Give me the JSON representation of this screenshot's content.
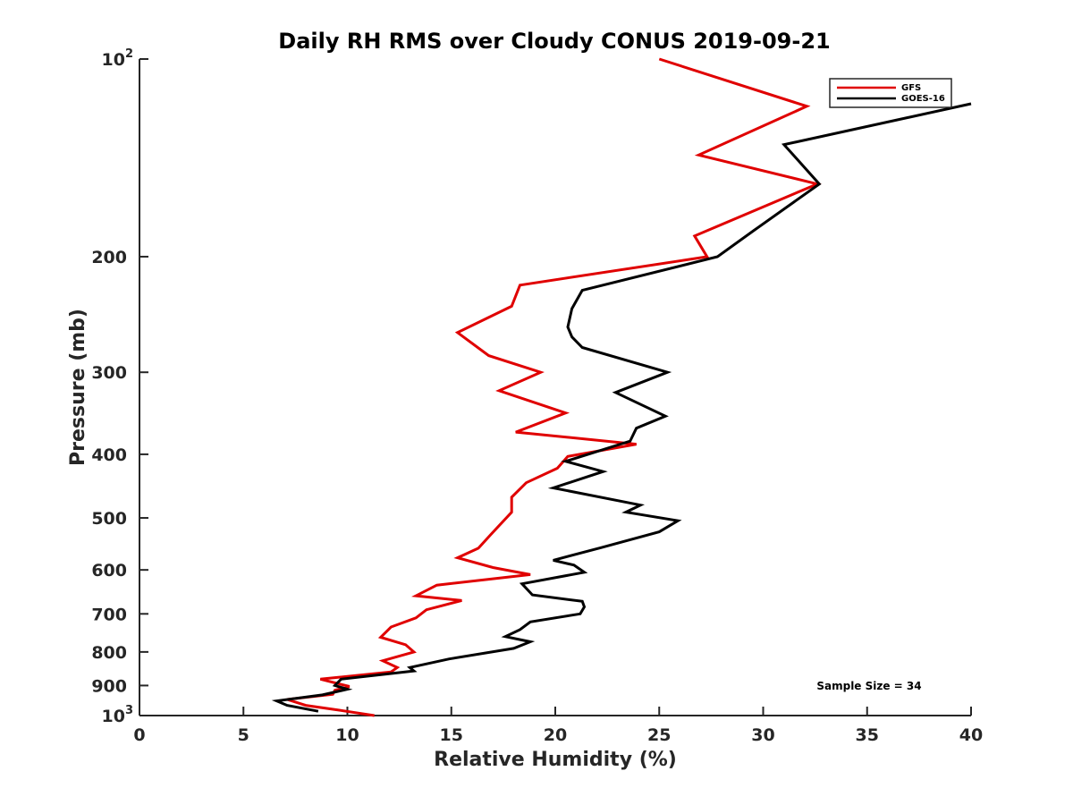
{
  "chart_data": {
    "type": "line",
    "title": "Daily RH RMS over Cloudy CONUS 2019-09-21",
    "xlabel": "Relative Humidity (%)",
    "ylabel": "Pressure (mb)",
    "xlim": [
      0,
      40
    ],
    "ylim": [
      100,
      1000
    ],
    "y_scale": "log",
    "y_reversed": true,
    "grid": false,
    "legend_position": "top-right",
    "x_ticks": [
      0,
      5,
      10,
      15,
      20,
      25,
      30,
      35,
      40
    ],
    "y_ticks": [
      {
        "value": 100,
        "base": "10",
        "exp": "2"
      },
      {
        "value": 200,
        "label": "200"
      },
      {
        "value": 300,
        "label": "300"
      },
      {
        "value": 400,
        "label": "400"
      },
      {
        "value": 500,
        "label": "500"
      },
      {
        "value": 600,
        "label": "600"
      },
      {
        "value": 700,
        "label": "700"
      },
      {
        "value": 800,
        "label": "800"
      },
      {
        "value": 900,
        "label": "900"
      },
      {
        "value": 1000,
        "base": "10",
        "exp": "3"
      }
    ],
    "series": [
      {
        "name": "GFS",
        "color": "#e00000",
        "points": [
          [
            25.0,
            100
          ],
          [
            32.1,
            118
          ],
          [
            26.9,
            140
          ],
          [
            32.6,
            155
          ],
          [
            26.7,
            186
          ],
          [
            27.3,
            200
          ],
          [
            18.3,
            221
          ],
          [
            17.9,
            238
          ],
          [
            15.3,
            261
          ],
          [
            16.8,
            283
          ],
          [
            19.3,
            300
          ],
          [
            17.3,
            320
          ],
          [
            20.5,
            346
          ],
          [
            18.1,
            370
          ],
          [
            23.9,
            386
          ],
          [
            20.6,
            403
          ],
          [
            20.1,
            420
          ],
          [
            18.6,
            442
          ],
          [
            17.9,
            465
          ],
          [
            17.9,
            490
          ],
          [
            16.9,
            530
          ],
          [
            16.3,
            556
          ],
          [
            15.3,
            575
          ],
          [
            17.0,
            595
          ],
          [
            18.8,
            610
          ],
          [
            14.3,
            633
          ],
          [
            13.3,
            657
          ],
          [
            15.5,
            668
          ],
          [
            13.8,
            690
          ],
          [
            13.3,
            710
          ],
          [
            12.1,
            733
          ],
          [
            11.6,
            760
          ],
          [
            12.8,
            780
          ],
          [
            13.2,
            800
          ],
          [
            11.7,
            825
          ],
          [
            12.4,
            845
          ],
          [
            12.1,
            858
          ],
          [
            8.7,
            880
          ],
          [
            10.1,
            903
          ],
          [
            9.4,
            915
          ],
          [
            9.3,
            928
          ],
          [
            7.1,
            945
          ],
          [
            8.0,
            965
          ],
          [
            9.5,
            980
          ],
          [
            11.3,
            1000
          ]
        ]
      },
      {
        "name": "GOES-16",
        "color": "#000000",
        "points": [
          [
            40.0,
            117
          ],
          [
            31.0,
            135
          ],
          [
            32.7,
            155
          ],
          [
            29.6,
            182
          ],
          [
            27.8,
            200
          ],
          [
            21.3,
            225
          ],
          [
            20.8,
            240
          ],
          [
            20.6,
            256
          ],
          [
            20.8,
            265
          ],
          [
            21.3,
            275
          ],
          [
            25.4,
            300
          ],
          [
            22.9,
            322
          ],
          [
            25.3,
            350
          ],
          [
            23.9,
            365
          ],
          [
            23.6,
            382
          ],
          [
            20.5,
            410
          ],
          [
            22.3,
            425
          ],
          [
            19.9,
            450
          ],
          [
            24.1,
            478
          ],
          [
            23.4,
            490
          ],
          [
            25.9,
            505
          ],
          [
            25.0,
            525
          ],
          [
            22.2,
            555
          ],
          [
            19.9,
            580
          ],
          [
            20.9,
            590
          ],
          [
            21.4,
            605
          ],
          [
            18.4,
            630
          ],
          [
            18.9,
            655
          ],
          [
            21.3,
            670
          ],
          [
            21.4,
            683
          ],
          [
            21.2,
            700
          ],
          [
            18.8,
            720
          ],
          [
            18.3,
            740
          ],
          [
            17.6,
            758
          ],
          [
            18.8,
            772
          ],
          [
            18.0,
            790
          ],
          [
            14.9,
            820
          ],
          [
            13.0,
            845
          ],
          [
            13.2,
            855
          ],
          [
            9.7,
            880
          ],
          [
            9.4,
            900
          ],
          [
            10.0,
            912
          ],
          [
            8.8,
            930
          ],
          [
            6.6,
            950
          ],
          [
            7.1,
            965
          ],
          [
            8.6,
            985
          ]
        ]
      }
    ],
    "annotation": "Sample Size = 34"
  }
}
